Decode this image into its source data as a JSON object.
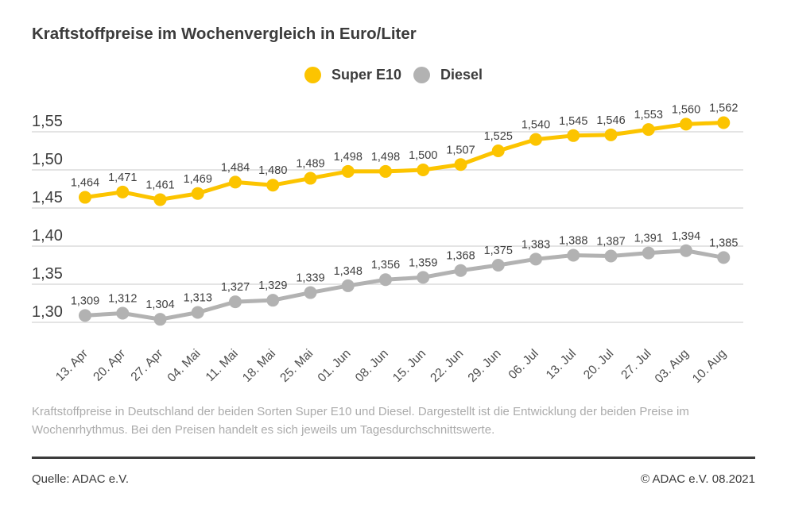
{
  "title": "Kraftstoffpreise im Wochenvergleich in Euro/Liter",
  "legend": [
    {
      "label": "Super E10",
      "color": "#FCC400"
    },
    {
      "label": "Diesel",
      "color": "#B2B2B2"
    }
  ],
  "chart_data": {
    "type": "line",
    "title": "Kraftstoffpreise im Wochenvergleich in Euro/Liter",
    "categories": [
      "13. Apr",
      "20. Apr",
      "27. Apr",
      "04. Mai",
      "11. Mai",
      "18. Mai",
      "25. Mai",
      "01. Jun",
      "08. Jun",
      "15. Jun",
      "22. Jun",
      "29. Jun",
      "06. Jul",
      "13. Jul",
      "20. Jul",
      "27. Jul",
      "03. Aug",
      "10. Aug"
    ],
    "series": [
      {
        "name": "Super E10",
        "color": "#FCC400",
        "values": [
          1.464,
          1.471,
          1.461,
          1.469,
          1.484,
          1.48,
          1.489,
          1.498,
          1.498,
          1.5,
          1.507,
          1.525,
          1.54,
          1.545,
          1.546,
          1.553,
          1.56,
          1.562
        ]
      },
      {
        "name": "Diesel",
        "color": "#B2B2B2",
        "values": [
          1.309,
          1.312,
          1.304,
          1.313,
          1.327,
          1.329,
          1.339,
          1.348,
          1.356,
          1.359,
          1.368,
          1.375,
          1.383,
          1.388,
          1.387,
          1.391,
          1.394,
          1.385
        ]
      }
    ],
    "xlabel": "",
    "ylabel": "Euro/Liter",
    "ylim": [
      1.3,
      1.55
    ],
    "yticks": [
      1.55,
      1.5,
      1.45,
      1.4,
      1.35,
      1.3
    ],
    "ytick_labels": [
      "1,55",
      "1,50",
      "1,45",
      "1,40",
      "1,35",
      "1,30"
    ],
    "decimal_separator": ",",
    "grid": true,
    "value_labels": true,
    "legend_position": "top-center"
  },
  "colors": {
    "grid": "#DCDCDC",
    "dark_text": "#3C3C3C",
    "x_tick_text": "#4D4D4D",
    "value_label_text": "#3F3F3F",
    "description_text": "#ABABAB"
  },
  "description": "Kraftstoffpreise in Deutschland der beiden Sorten Super E10 und Diesel. Dargestellt ist die Entwicklung der beiden Preise im Wochenrhythmus. Bei den Preisen handelt es sich jeweils um Tagesdurchschnittswerte.",
  "footer": {
    "source": "Quelle: ADAC e.V.",
    "copyright": "© ADAC e.V. 08.2021"
  }
}
